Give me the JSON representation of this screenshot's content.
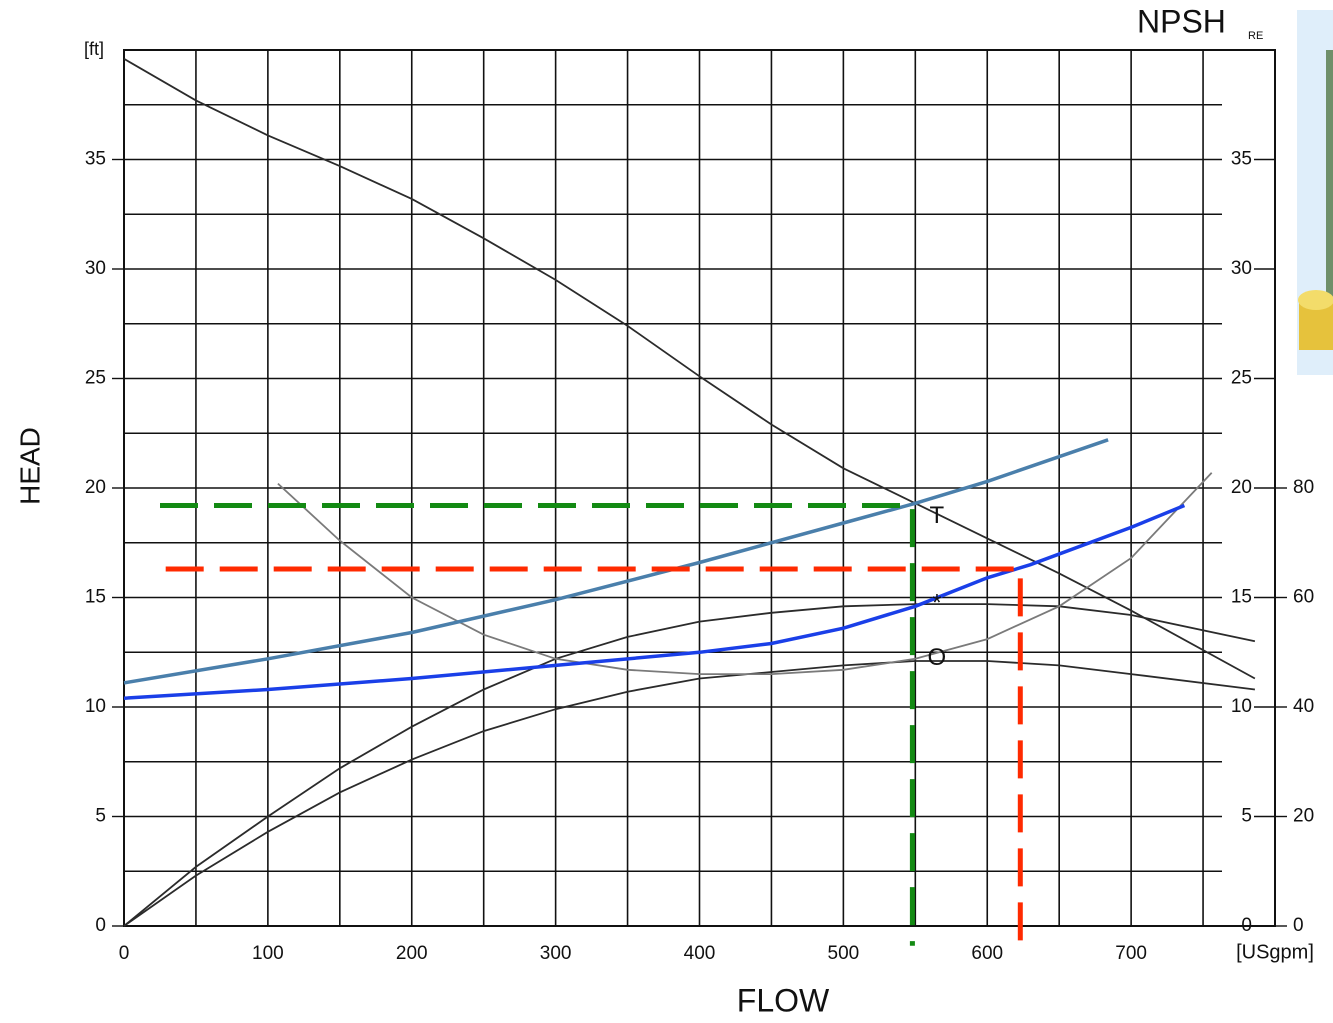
{
  "chart_data": {
    "type": "line",
    "x_label": "FLOW",
    "x_unit": "[USgpm]",
    "y_label": "HEAD",
    "y_unit": "[ft]",
    "y2_label": {
      "text": "NPSH",
      "subscript": "RE"
    },
    "xlim": [
      0,
      800
    ],
    "xticks": [
      0,
      100,
      200,
      300,
      400,
      500,
      600,
      700
    ],
    "ylim": [
      0,
      40
    ],
    "yticks": [
      0,
      5,
      10,
      15,
      20,
      25,
      30,
      35
    ],
    "y2lim": [
      0,
      160
    ],
    "y2ticks": [
      0,
      20,
      40,
      60,
      80
    ],
    "grid": true,
    "series": [
      {
        "color": "#2b2b2b",
        "dash": false,
        "x": [
          0,
          50,
          100,
          150,
          200,
          250,
          300,
          350,
          400,
          450,
          500,
          550,
          600,
          650,
          700,
          786
        ],
        "values": [
          39.6,
          37.7,
          36.1,
          34.7,
          33.2,
          31.4,
          29.5,
          27.4,
          25.1,
          22.9,
          20.9,
          19.3,
          17.7,
          16.1,
          14.4,
          11.3
        ]
      },
      {
        "color": "#2b2b2b",
        "dash": false,
        "x": [
          0,
          50,
          100,
          150,
          200,
          250,
          300,
          350,
          400,
          450,
          500,
          550,
          600,
          650,
          700,
          786
        ],
        "values": [
          0,
          2.7,
          5,
          7.2,
          9.1,
          10.8,
          12.2,
          13.2,
          13.9,
          14.3,
          14.6,
          14.7,
          14.7,
          14.6,
          14.2,
          13
        ]
      },
      {
        "color": "#2b2b2b",
        "dash": false,
        "x": [
          0,
          50,
          100,
          150,
          200,
          250,
          300,
          350,
          400,
          450,
          500,
          550,
          600,
          650,
          700,
          786
        ],
        "values": [
          0,
          2.3,
          4.3,
          6.1,
          7.6,
          8.9,
          9.9,
          10.7,
          11.3,
          11.6,
          11.9,
          12.1,
          12.1,
          11.9,
          11.5,
          10.8
        ]
      },
      {
        "color": "#7a7a7a",
        "dash": false,
        "x": [
          107,
          150,
          200,
          250,
          300,
          350,
          400,
          450,
          500,
          550,
          600,
          650,
          700,
          756
        ],
        "values": [
          20.2,
          17.6,
          15,
          13.3,
          12.2,
          11.7,
          11.5,
          11.5,
          11.7,
          12.2,
          13.1,
          14.6,
          16.8,
          20.7
        ]
      },
      {
        "color": "#4a7fab",
        "dash": false,
        "x": [
          0,
          100,
          200,
          300,
          400,
          500,
          550,
          600,
          684
        ],
        "values": [
          11.1,
          12.2,
          13.4,
          14.9,
          16.6,
          18.4,
          19.3,
          20.3,
          22.2
        ]
      },
      {
        "color": "#1a3fe8",
        "dash": false,
        "x": [
          0,
          100,
          200,
          300,
          400,
          450,
          500,
          550,
          600,
          630,
          700,
          737
        ],
        "values": [
          10.4,
          10.8,
          11.3,
          11.9,
          12.5,
          12.9,
          13.6,
          14.6,
          15.9,
          16.5,
          18.2,
          19.2
        ]
      },
      {
        "color": "#138a13",
        "dash": true,
        "x": [
          25,
          548,
          548
        ],
        "values": [
          19.2,
          19.2,
          -0.9
        ]
      },
      {
        "color": "#ff2a00",
        "dash": true,
        "x": [
          29,
          623,
          623
        ],
        "values": [
          16.3,
          16.3,
          -0.9
        ]
      }
    ],
    "annotations": [
      {
        "text": "T",
        "x": 565,
        "y": 18.7
      },
      {
        "text": "*",
        "x": 565,
        "y": 14.7
      },
      {
        "text": "O",
        "x": 565,
        "y": 12.2
      }
    ]
  }
}
